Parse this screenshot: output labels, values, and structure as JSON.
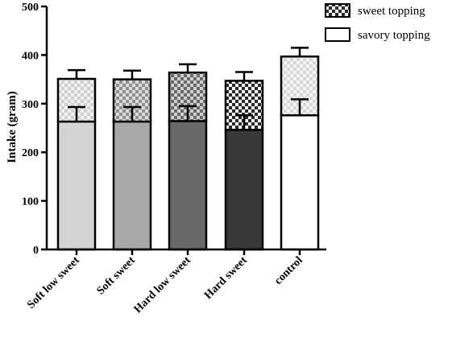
{
  "chart_data": {
    "type": "bar",
    "stacked": true,
    "title": "",
    "xlabel": "",
    "ylabel": "Intake (gram)",
    "ylim": [
      0,
      500
    ],
    "yticks": [
      0,
      100,
      200,
      300,
      400,
      500
    ],
    "grid": false,
    "legend_position": "top-right",
    "categories": [
      "Soft low sweet",
      "Soft sweet",
      "Hard low sweet",
      "Hard sweet",
      "control"
    ],
    "bar_colors": [
      "#d4d4d4",
      "#a8a8a8",
      "#686868",
      "#383838",
      "#ffffff"
    ],
    "series": [
      {
        "name": "savory topping",
        "pattern": "solid",
        "values": [
          263,
          263,
          264,
          246,
          276
        ],
        "error": [
          30,
          30,
          31,
          30,
          33
        ]
      },
      {
        "name": "sweet topping",
        "pattern": "checkered",
        "values": [
          88,
          87,
          100,
          101,
          121
        ],
        "error": [
          18,
          18,
          17,
          18,
          18
        ]
      }
    ]
  }
}
